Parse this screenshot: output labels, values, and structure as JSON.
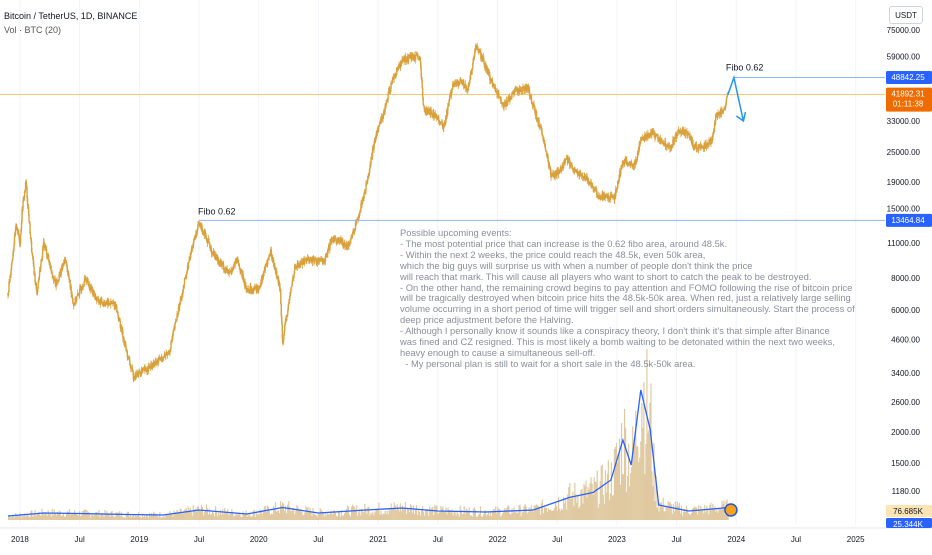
{
  "header": {
    "title": "Bitcoin / TetherUS, 1D, BINANCE",
    "volume_label": "Vol · BTC (20)",
    "currency": "USDT"
  },
  "colors": {
    "candle": "#d9a13c",
    "volume": "#e0c9a0",
    "volume_ma": "#2962ff",
    "fibo_line": "#90b4f2",
    "last_price_line": "#f5a623",
    "fibo_label_bg": "#2962ff",
    "last_price_bg": "#ef6c00",
    "arrow": "#2196f3"
  },
  "annotations": {
    "fibo_upper": "Fibo 0.62",
    "fibo_lower": "Fibo 0.62",
    "note": "Possible upcoming events:\n- The most potential price that can increase is the 0.62 fibo area, around 48.5k.\n- Within the next 2 weeks, the price could reach the 48.5k, even 50k area,\nwhich the big guys will surprise us with when a number of people don't think the price\nwill reach that mark. This will cause all players who want to short to catch the peak to be destroyed.\n- On the other hand, the remaining crowd begins to pay attention and FOMO following the rise of bitcoin price\nwill be tragically destroyed when bitcoin price hits the 48.5k-50k area. When red, just a relatively large selling\nvolume occurring in a short period of time will trigger sell and short orders simultaneously. Start the process of\ndeep price adjustment before the Halving.\n- Although I personally know it sounds like a conspiracy theory, I don't think it's that simple after Binance\nwas fined and CZ resigned. This is most likely a bomb waiting to be detonated within the next two weeks,\nheavy enough to cause a simultaneous sell-off.\n  - My personal plan is still to wait for a short sale in the 48.5k-50k area."
  },
  "price_labels": {
    "fibo_upper": "48842.25",
    "last_price": "41892.31",
    "countdown": "01:11:38",
    "fibo_lower": "13464.84",
    "volume_last": "76.685K",
    "volume_ma": "25.344K"
  },
  "chart_data": {
    "type": "candlestick",
    "scale": "log",
    "x_ticks": [
      "2018",
      "Jul",
      "2019",
      "Jul",
      "2020",
      "Jul",
      "2021",
      "Jul",
      "2022",
      "Jul",
      "2023",
      "Jul",
      "2024",
      "Jul",
      "2025"
    ],
    "y_ticks": [
      "75000.00",
      "59000.00",
      "33000.00",
      "25000.00",
      "19000.00",
      "15000.00",
      "11000.00",
      "8000.00",
      "6000.00",
      "4600.00",
      "3400.00",
      "2600.00",
      "2000.00",
      "1500.00",
      "1180.00"
    ],
    "price_path": [
      [
        2017.9,
        7000
      ],
      [
        2017.97,
        13000
      ],
      [
        2018.0,
        11000
      ],
      [
        2018.02,
        15000
      ],
      [
        2018.05,
        19000
      ],
      [
        2018.1,
        10000
      ],
      [
        2018.14,
        7000
      ],
      [
        2018.2,
        11000
      ],
      [
        2018.3,
        7500
      ],
      [
        2018.38,
        9500
      ],
      [
        2018.45,
        6300
      ],
      [
        2018.55,
        8000
      ],
      [
        2018.65,
        6500
      ],
      [
        2018.8,
        6300
      ],
      [
        2018.9,
        4000
      ],
      [
        2018.95,
        3300
      ],
      [
        2019.1,
        3600
      ],
      [
        2019.25,
        4100
      ],
      [
        2019.38,
        7800
      ],
      [
        2019.45,
        11000
      ],
      [
        2019.5,
        13000
      ],
      [
        2019.55,
        12000
      ],
      [
        2019.6,
        10300
      ],
      [
        2019.75,
        8300
      ],
      [
        2019.82,
        9400
      ],
      [
        2019.9,
        7200
      ],
      [
        2020.0,
        7300
      ],
      [
        2020.1,
        10200
      ],
      [
        2020.18,
        7200
      ],
      [
        2020.2,
        4500
      ],
      [
        2020.3,
        8800
      ],
      [
        2020.4,
        9500
      ],
      [
        2020.55,
        9300
      ],
      [
        2020.62,
        11500
      ],
      [
        2020.75,
        10700
      ],
      [
        2020.82,
        13200
      ],
      [
        2020.9,
        18500
      ],
      [
        2020.98,
        29000
      ],
      [
        2021.05,
        36000
      ],
      [
        2021.12,
        48000
      ],
      [
        2021.2,
        57000
      ],
      [
        2021.28,
        59000
      ],
      [
        2021.35,
        58000
      ],
      [
        2021.38,
        37000
      ],
      [
        2021.5,
        34000
      ],
      [
        2021.55,
        31000
      ],
      [
        2021.62,
        45000
      ],
      [
        2021.7,
        47000
      ],
      [
        2021.75,
        43000
      ],
      [
        2021.82,
        65000
      ],
      [
        2021.88,
        57000
      ],
      [
        2021.95,
        47000
      ],
      [
        2022.05,
        38000
      ],
      [
        2022.15,
        43000
      ],
      [
        2022.25,
        45000
      ],
      [
        2022.3,
        38000
      ],
      [
        2022.38,
        29000
      ],
      [
        2022.45,
        20000
      ],
      [
        2022.52,
        21000
      ],
      [
        2022.58,
        23500
      ],
      [
        2022.65,
        21000
      ],
      [
        2022.75,
        19500
      ],
      [
        2022.85,
        16800
      ],
      [
        2022.98,
        16600
      ],
      [
        2023.05,
        23000
      ],
      [
        2023.15,
        22000
      ],
      [
        2023.2,
        28000
      ],
      [
        2023.3,
        29500
      ],
      [
        2023.45,
        26000
      ],
      [
        2023.52,
        30500
      ],
      [
        2023.6,
        29200
      ],
      [
        2023.65,
        26000
      ],
      [
        2023.75,
        26500
      ],
      [
        2023.8,
        28000
      ],
      [
        2023.83,
        34500
      ],
      [
        2023.9,
        37000
      ],
      [
        2023.93,
        41892
      ]
    ],
    "projection": [
      [
        2023.93,
        41892
      ],
      [
        2023.98,
        48842
      ],
      [
        2024.06,
        33000
      ]
    ],
    "fibo_levels": [
      {
        "value": 48842.25,
        "from_x": 2023.98
      },
      {
        "value": 13464.84,
        "from_x": 2019.5
      }
    ],
    "last_price": 41892.31,
    "volume_ma_path": [
      [
        2017.9,
        8
      ],
      [
        2018.2,
        14
      ],
      [
        2018.5,
        13
      ],
      [
        2018.9,
        11
      ],
      [
        2019.2,
        10
      ],
      [
        2019.5,
        20
      ],
      [
        2019.9,
        12
      ],
      [
        2020.2,
        25
      ],
      [
        2020.5,
        14
      ],
      [
        2020.9,
        20
      ],
      [
        2021.2,
        24
      ],
      [
        2021.5,
        18
      ],
      [
        2021.9,
        16
      ],
      [
        2022.3,
        20
      ],
      [
        2022.6,
        45
      ],
      [
        2022.8,
        55
      ],
      [
        2022.95,
        80
      ],
      [
        2023.05,
        160
      ],
      [
        2023.12,
        110
      ],
      [
        2023.2,
        260
      ],
      [
        2023.28,
        180
      ],
      [
        2023.35,
        30
      ],
      [
        2023.6,
        18
      ],
      [
        2023.8,
        22
      ],
      [
        2023.93,
        25
      ]
    ]
  }
}
